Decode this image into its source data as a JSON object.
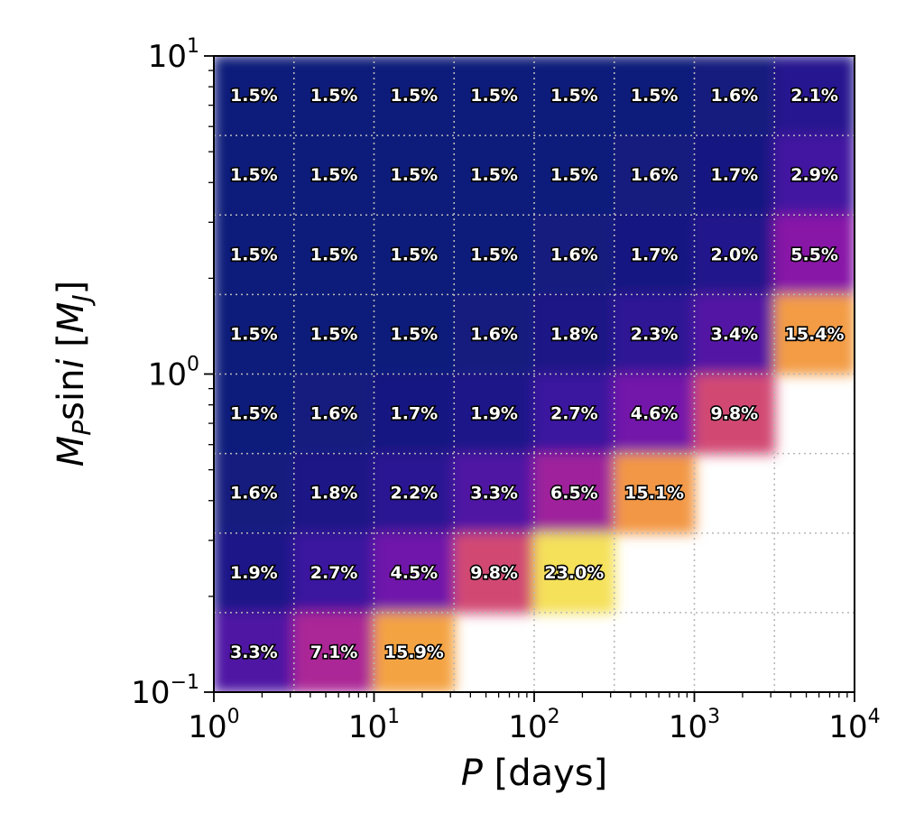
{
  "chart_data": {
    "type": "heatmap",
    "xlabel": {
      "italic": "P",
      "rest": " [days]"
    },
    "ylabel": {
      "italic1": "M",
      "sub": "P",
      "mid": "sin",
      "italic2": "i",
      "rest1": " [",
      "italic3": "M",
      "sub2": "J",
      "rest2": "]"
    },
    "x_scale": "log",
    "y_scale": "log",
    "xlim": [
      1,
      10000
    ],
    "ylim": [
      0.1,
      10
    ],
    "x_ticks": [
      {
        "value": 1,
        "base": "10",
        "exp": "0"
      },
      {
        "value": 10,
        "base": "10",
        "exp": "1"
      },
      {
        "value": 100,
        "base": "10",
        "exp": "2"
      },
      {
        "value": 1000,
        "base": "10",
        "exp": "3"
      },
      {
        "value": 10000,
        "base": "10",
        "exp": "4"
      }
    ],
    "y_ticks": [
      {
        "value": 0.1,
        "base": "10",
        "exp": "−1"
      },
      {
        "value": 1,
        "base": "10",
        "exp": "0"
      },
      {
        "value": 10,
        "base": "10",
        "exp": "1"
      }
    ],
    "grid": true,
    "colormap": "plasma",
    "colors": {
      "low": "#0d1b7a",
      "mid": "#a41cb0",
      "high": "#f5d74a",
      "none": "#ffffff"
    },
    "rows_top_to_bottom": [
      [
        "1.5%",
        "1.5%",
        "1.5%",
        "1.5%",
        "1.5%",
        "1.5%",
        "1.6%",
        "2.1%"
      ],
      [
        "1.5%",
        "1.5%",
        "1.5%",
        "1.5%",
        "1.5%",
        "1.6%",
        "1.7%",
        "2.9%"
      ],
      [
        "1.5%",
        "1.5%",
        "1.5%",
        "1.5%",
        "1.6%",
        "1.7%",
        "2.0%",
        "5.5%"
      ],
      [
        "1.5%",
        "1.5%",
        "1.5%",
        "1.6%",
        "1.8%",
        "2.3%",
        "3.4%",
        "15.4%"
      ],
      [
        "1.5%",
        "1.6%",
        "1.7%",
        "1.9%",
        "2.7%",
        "4.6%",
        "9.8%",
        ""
      ],
      [
        "1.6%",
        "1.8%",
        "2.2%",
        "3.3%",
        "6.5%",
        "15.1%",
        "",
        ""
      ],
      [
        "1.9%",
        "2.7%",
        "4.5%",
        "9.8%",
        "23.0%",
        "",
        "",
        ""
      ],
      [
        "3.3%",
        "7.1%",
        "15.9%",
        "",
        "",
        "",
        "",
        ""
      ]
    ]
  }
}
